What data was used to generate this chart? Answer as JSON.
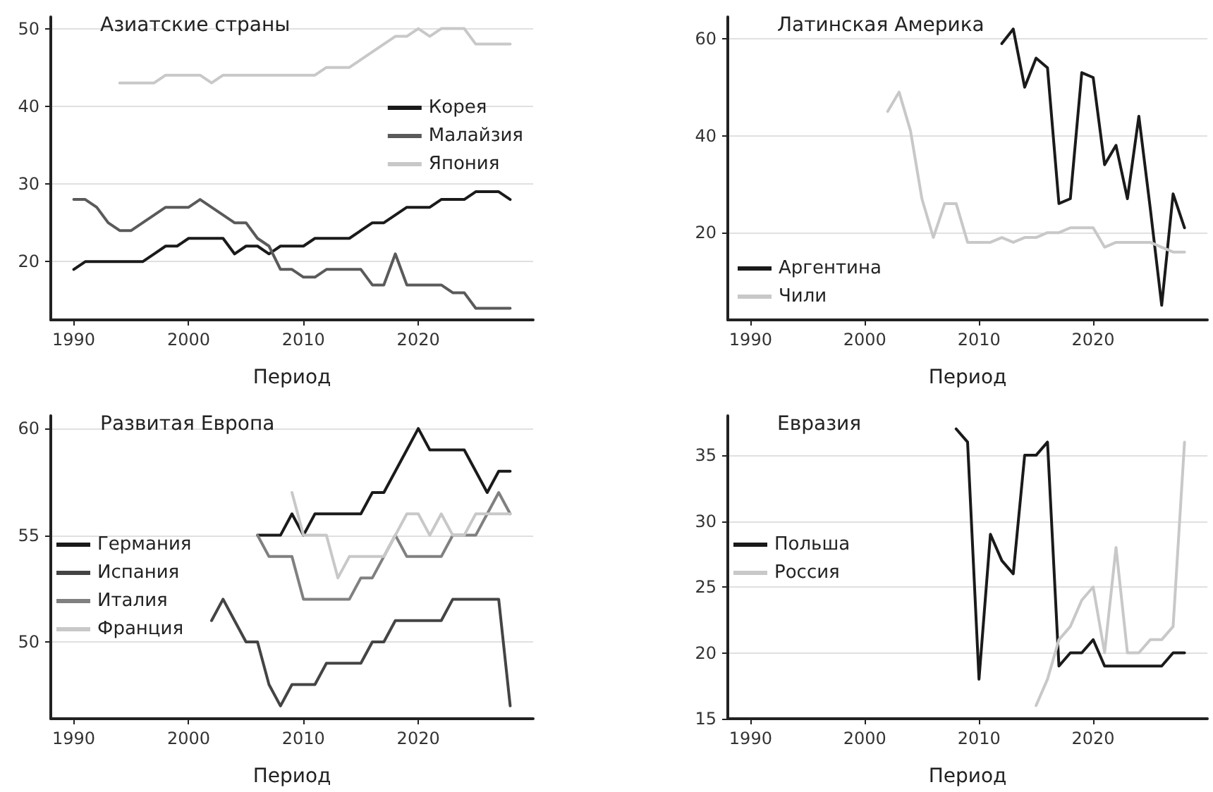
{
  "chart_data": [
    {
      "type": "line",
      "title": "Азиатские страны",
      "xlabel": "Период",
      "xlim": [
        1988,
        2030
      ],
      "xticks": [
        1990,
        2000,
        2010,
        2020
      ],
      "ylim": [
        12.5,
        51.5
      ],
      "yticks": [
        20,
        30,
        40,
        50
      ],
      "grid": "y",
      "legend": "right",
      "series": [
        {
          "name": "Корея",
          "color": "#1a1a1a",
          "x": [
            1990,
            1991,
            1992,
            1993,
            1994,
            1995,
            1996,
            1997,
            1998,
            1999,
            2000,
            2001,
            2002,
            2003,
            2004,
            2005,
            2006,
            2007,
            2008,
            2009,
            2010,
            2011,
            2012,
            2013,
            2014,
            2015,
            2016,
            2017,
            2018,
            2019,
            2020,
            2021,
            2022,
            2023,
            2024,
            2025,
            2026,
            2027,
            2028
          ],
          "values": [
            19,
            20,
            20,
            20,
            20,
            20,
            20,
            21,
            22,
            22,
            23,
            23,
            23,
            23,
            21,
            22,
            22,
            21,
            22,
            22,
            22,
            23,
            23,
            23,
            23,
            24,
            25,
            25,
            26,
            27,
            27,
            27,
            28,
            28,
            28,
            29,
            29,
            29,
            28
          ]
        },
        {
          "name": "Малайзия",
          "color": "#5a5a5a",
          "x": [
            1990,
            1991,
            1992,
            1993,
            1994,
            1995,
            1996,
            1997,
            1998,
            1999,
            2000,
            2001,
            2002,
            2003,
            2004,
            2005,
            2006,
            2007,
            2008,
            2009,
            2010,
            2011,
            2012,
            2013,
            2014,
            2015,
            2016,
            2017,
            2018,
            2019,
            2020,
            2021,
            2022,
            2023,
            2024,
            2025,
            2026,
            2027,
            2028
          ],
          "values": [
            28,
            28,
            27,
            25,
            24,
            24,
            25,
            26,
            27,
            27,
            27,
            28,
            27,
            26,
            25,
            25,
            23,
            22,
            19,
            19,
            18,
            18,
            19,
            19,
            19,
            19,
            17,
            17,
            21,
            17,
            17,
            17,
            17,
            16,
            16,
            14,
            14,
            14,
            14
          ]
        },
        {
          "name": "Япония",
          "color": "#c8c8c8",
          "x": [
            1994,
            1995,
            1996,
            1997,
            1998,
            1999,
            2000,
            2001,
            2002,
            2003,
            2004,
            2005,
            2006,
            2007,
            2008,
            2009,
            2010,
            2011,
            2012,
            2013,
            2014,
            2015,
            2016,
            2017,
            2018,
            2019,
            2020,
            2021,
            2022,
            2023,
            2024,
            2025,
            2026,
            2027,
            2028
          ],
          "values": [
            43,
            43,
            43,
            43,
            44,
            44,
            44,
            44,
            43,
            44,
            44,
            44,
            44,
            44,
            44,
            44,
            44,
            44,
            45,
            45,
            45,
            46,
            47,
            48,
            49,
            49,
            50,
            49,
            50,
            50,
            50,
            48,
            48,
            48,
            48
          ]
        }
      ]
    },
    {
      "type": "line",
      "title": "Латинская Америка",
      "xlabel": "Период",
      "xlim": [
        1988,
        2030
      ],
      "xticks": [
        1990,
        2000,
        2010,
        2020
      ],
      "ylim": [
        2,
        64.5
      ],
      "yticks": [
        20,
        40,
        60
      ],
      "grid": "y",
      "legend": "bottom left",
      "series": [
        {
          "name": "Аргентина",
          "color": "#1a1a1a",
          "x": [
            2012,
            2013,
            2014,
            2015,
            2016,
            2017,
            2018,
            2019,
            2020,
            2021,
            2022,
            2023,
            2024,
            2025,
            2026,
            2027,
            2028
          ],
          "values": [
            59,
            62,
            50,
            56,
            54,
            26,
            27,
            53,
            52,
            34,
            38,
            27,
            44,
            25,
            5,
            28,
            21
          ]
        },
        {
          "name": "Чили",
          "color": "#c8c8c8",
          "x": [
            2002,
            2003,
            2004,
            2005,
            2006,
            2007,
            2008,
            2009,
            2010,
            2011,
            2012,
            2013,
            2014,
            2015,
            2016,
            2017,
            2018,
            2019,
            2020,
            2021,
            2022,
            2023,
            2024,
            2025,
            2026,
            2027,
            2028
          ],
          "values": [
            45,
            49,
            41,
            27,
            19,
            26,
            26,
            18,
            18,
            18,
            19,
            18,
            19,
            19,
            20,
            20,
            21,
            21,
            21,
            17,
            18,
            18,
            18,
            18,
            17,
            16,
            16
          ]
        }
      ]
    },
    {
      "type": "line",
      "title": "Развитая Европа",
      "xlabel": "Период",
      "xlim": [
        1988,
        2030
      ],
      "xticks": [
        1990,
        2000,
        2010,
        2020
      ],
      "ylim": [
        46.4,
        60.6
      ],
      "yticks": [
        50,
        55,
        60
      ],
      "grid": "y",
      "legend": "left",
      "series": [
        {
          "name": "Германия",
          "color": "#1a1a1a",
          "x": [
            2006,
            2007,
            2008,
            2009,
            2010,
            2011,
            2012,
            2013,
            2014,
            2015,
            2016,
            2017,
            2018,
            2019,
            2020,
            2021,
            2022,
            2023,
            2024,
            2025,
            2026,
            2027,
            2028
          ],
          "values": [
            55,
            55,
            55,
            56,
            55,
            56,
            56,
            56,
            56,
            56,
            57,
            57,
            58,
            59,
            60,
            59,
            59,
            59,
            59,
            58,
            57,
            58,
            58
          ]
        },
        {
          "name": "Испания",
          "color": "#444444",
          "x": [
            2002,
            2003,
            2004,
            2005,
            2006,
            2007,
            2008,
            2009,
            2010,
            2011,
            2012,
            2013,
            2014,
            2015,
            2016,
            2017,
            2018,
            2019,
            2020,
            2021,
            2022,
            2023,
            2024,
            2025,
            2026,
            2027,
            2028
          ],
          "values": [
            51,
            52,
            51,
            50,
            50,
            48,
            47,
            48,
            48,
            48,
            49,
            49,
            49,
            49,
            50,
            50,
            51,
            51,
            51,
            51,
            51,
            52,
            52,
            52,
            52,
            52,
            47
          ]
        },
        {
          "name": "Италия",
          "color": "#808080",
          "x": [
            2006,
            2007,
            2008,
            2009,
            2010,
            2011,
            2012,
            2013,
            2014,
            2015,
            2016,
            2017,
            2018,
            2019,
            2020,
            2021,
            2022,
            2023,
            2024,
            2025,
            2026,
            2027,
            2028
          ],
          "values": [
            55,
            54,
            54,
            54,
            52,
            52,
            52,
            52,
            52,
            53,
            53,
            54,
            55,
            54,
            54,
            54,
            54,
            55,
            55,
            55,
            56,
            57,
            56
          ]
        },
        {
          "name": "Франция",
          "color": "#c8c8c8",
          "x": [
            2009,
            2010,
            2011,
            2012,
            2013,
            2014,
            2015,
            2016,
            2017,
            2018,
            2019,
            2020,
            2021,
            2022,
            2023,
            2024,
            2025,
            2026,
            2027,
            2028
          ],
          "values": [
            57,
            55,
            55,
            55,
            53,
            54,
            54,
            54,
            54,
            55,
            56,
            56,
            55,
            56,
            55,
            55,
            56,
            56,
            56,
            56
          ]
        }
      ]
    },
    {
      "type": "line",
      "title": "Евразия",
      "xlabel": "Период",
      "xlim": [
        1988,
        2030
      ],
      "xticks": [
        1990,
        2000,
        2010,
        2020
      ],
      "ylim": [
        15,
        38
      ],
      "yticks": [
        15,
        20,
        25,
        30,
        35
      ],
      "grid": "y",
      "legend": "left",
      "series": [
        {
          "name": "Польша",
          "color": "#1a1a1a",
          "x": [
            2008,
            2009,
            2010,
            2011,
            2012,
            2013,
            2014,
            2015,
            2016,
            2017,
            2018,
            2019,
            2020,
            2021,
            2022,
            2023,
            2024,
            2025,
            2026,
            2027,
            2028
          ],
          "values": [
            37,
            36,
            18,
            29,
            27,
            26,
            35,
            35,
            36,
            19,
            20,
            20,
            21,
            19,
            19,
            19,
            19,
            19,
            19,
            20,
            20
          ]
        },
        {
          "name": "Россия",
          "color": "#c8c8c8",
          "x": [
            2015,
            2016,
            2017,
            2018,
            2019,
            2020,
            2021,
            2022,
            2023,
            2024,
            2025,
            2026,
            2027,
            2028
          ],
          "values": [
            16,
            18,
            21,
            22,
            24,
            25,
            20,
            28,
            20,
            20,
            21,
            21,
            22,
            36
          ]
        }
      ]
    }
  ]
}
